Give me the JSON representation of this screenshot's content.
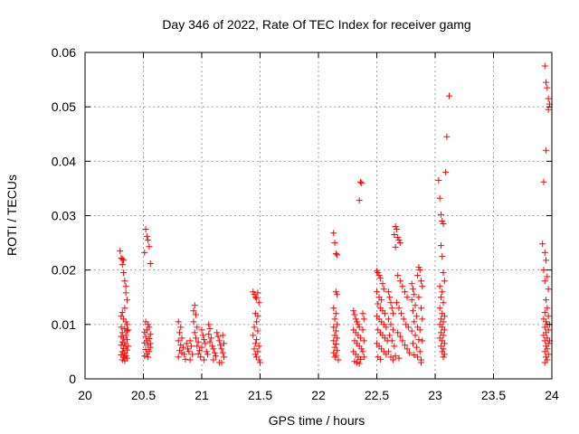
{
  "chart_data": {
    "type": "scatter",
    "title": "Day 346 of 2022, Rate Of TEC Index for receiver gamg",
    "xlabel": "GPS time / hours",
    "ylabel": "ROTI / TECUs",
    "xlim": [
      20,
      24
    ],
    "ylim": [
      0,
      0.06
    ],
    "grid": true,
    "marker": "+",
    "series_color": "#ff0000",
    "x_ticks": [
      20,
      20.5,
      21,
      21.5,
      22,
      22.5,
      23,
      23.5,
      24
    ],
    "y_ticks": [
      0,
      0.01,
      0.02,
      0.03,
      0.04,
      0.05,
      0.06
    ],
    "x_tick_labels": [
      "20",
      "20.5",
      "21",
      "21.5",
      "22",
      "22.5",
      "23",
      "23.5",
      "24"
    ],
    "y_tick_labels": [
      "0",
      "0.01",
      "0.02",
      "0.03",
      "0.04",
      "0.05",
      "0.06"
    ],
    "points": [
      [
        20.3,
        0.0235
      ],
      [
        20.31,
        0.0222
      ],
      [
        20.32,
        0.022
      ],
      [
        20.33,
        0.0218
      ],
      [
        20.32,
        0.021
      ],
      [
        20.33,
        0.0195
      ],
      [
        20.34,
        0.018
      ],
      [
        20.35,
        0.017
      ],
      [
        20.35,
        0.0158
      ],
      [
        20.36,
        0.0145
      ],
      [
        20.34,
        0.013
      ],
      [
        20.32,
        0.0122
      ],
      [
        20.31,
        0.0115
      ],
      [
        20.33,
        0.011
      ],
      [
        20.35,
        0.0105
      ],
      [
        20.36,
        0.01
      ],
      [
        20.31,
        0.0095
      ],
      [
        20.34,
        0.0092
      ],
      [
        20.36,
        0.0088
      ],
      [
        20.32,
        0.0085
      ],
      [
        20.35,
        0.008
      ],
      [
        20.31,
        0.0078
      ],
      [
        20.33,
        0.0075
      ],
      [
        20.36,
        0.0072
      ],
      [
        20.32,
        0.0068
      ],
      [
        20.34,
        0.0065
      ],
      [
        20.31,
        0.0062
      ],
      [
        20.35,
        0.006
      ],
      [
        20.33,
        0.0056
      ],
      [
        20.36,
        0.0053
      ],
      [
        20.32,
        0.005
      ],
      [
        20.34,
        0.0047
      ],
      [
        20.31,
        0.0044
      ],
      [
        20.35,
        0.0042
      ],
      [
        20.33,
        0.004
      ],
      [
        20.36,
        0.0038
      ],
      [
        20.32,
        0.0035
      ],
      [
        20.34,
        0.0033
      ],
      [
        20.37,
        0.009
      ],
      [
        20.37,
        0.006
      ],
      [
        20.52,
        0.0275
      ],
      [
        20.53,
        0.0262
      ],
      [
        20.54,
        0.0255
      ],
      [
        20.55,
        0.0243
      ],
      [
        20.51,
        0.0232
      ],
      [
        20.56,
        0.0212
      ],
      [
        20.52,
        0.0105
      ],
      [
        20.54,
        0.01
      ],
      [
        20.55,
        0.0095
      ],
      [
        20.53,
        0.009
      ],
      [
        20.51,
        0.0086
      ],
      [
        20.56,
        0.0082
      ],
      [
        20.52,
        0.0078
      ],
      [
        20.55,
        0.0074
      ],
      [
        20.53,
        0.007
      ],
      [
        20.51,
        0.0066
      ],
      [
        20.54,
        0.0062
      ],
      [
        20.56,
        0.0058
      ],
      [
        20.52,
        0.0054
      ],
      [
        20.55,
        0.005
      ],
      [
        20.53,
        0.0046
      ],
      [
        20.51,
        0.0042
      ],
      [
        20.54,
        0.004
      ],
      [
        20.56,
        0.0065
      ],
      [
        20.8,
        0.0105
      ],
      [
        20.82,
        0.0095
      ],
      [
        20.81,
        0.0085
      ],
      [
        20.83,
        0.0075
      ],
      [
        20.8,
        0.007
      ],
      [
        20.82,
        0.0062
      ],
      [
        20.84,
        0.0058
      ],
      [
        20.81,
        0.0052
      ],
      [
        20.83,
        0.0048
      ],
      [
        20.85,
        0.0045
      ],
      [
        20.8,
        0.004
      ],
      [
        20.86,
        0.0036
      ],
      [
        20.87,
        0.0065
      ],
      [
        20.88,
        0.0055
      ],
      [
        20.89,
        0.005
      ],
      [
        20.9,
        0.007
      ],
      [
        20.91,
        0.006
      ],
      [
        20.92,
        0.0045
      ],
      [
        20.93,
        0.0125
      ],
      [
        20.94,
        0.0135
      ],
      [
        20.95,
        0.0118
      ],
      [
        20.93,
        0.0105
      ],
      [
        20.96,
        0.0095
      ],
      [
        20.94,
        0.0085
      ],
      [
        20.95,
        0.0075
      ],
      [
        20.97,
        0.0068
      ],
      [
        20.96,
        0.006
      ],
      [
        20.98,
        0.0052
      ],
      [
        20.97,
        0.0046
      ],
      [
        20.99,
        0.004
      ],
      [
        21.0,
        0.009
      ],
      [
        21.01,
        0.008
      ],
      [
        21.02,
        0.0072
      ],
      [
        21.03,
        0.0065
      ],
      [
        21.0,
        0.0058
      ],
      [
        21.04,
        0.005
      ],
      [
        21.05,
        0.0045
      ],
      [
        21.06,
        0.01
      ],
      [
        21.07,
        0.0092
      ],
      [
        21.06,
        0.0082
      ],
      [
        21.08,
        0.0075
      ],
      [
        21.07,
        0.0068
      ],
      [
        21.09,
        0.006
      ],
      [
        21.1,
        0.0055
      ],
      [
        21.11,
        0.0048
      ],
      [
        21.12,
        0.0042
      ],
      [
        21.13,
        0.0085
      ],
      [
        21.14,
        0.0078
      ],
      [
        21.15,
        0.007
      ],
      [
        21.16,
        0.0062
      ],
      [
        21.17,
        0.0055
      ],
      [
        21.18,
        0.0048
      ],
      [
        21.19,
        0.004
      ],
      [
        21.17,
        0.003
      ],
      [
        21.18,
        0.008
      ],
      [
        21.19,
        0.0065
      ],
      [
        21.02,
        0.0035
      ],
      [
        20.9,
        0.0035
      ],
      [
        21.1,
        0.0035
      ],
      [
        21.15,
        0.003
      ],
      [
        21.44,
        0.016
      ],
      [
        21.45,
        0.0155
      ],
      [
        21.46,
        0.015
      ],
      [
        21.47,
        0.0148
      ],
      [
        21.48,
        0.0158
      ],
      [
        21.49,
        0.014
      ],
      [
        21.46,
        0.012
      ],
      [
        21.47,
        0.0105
      ],
      [
        21.45,
        0.0095
      ],
      [
        21.48,
        0.0088
      ],
      [
        21.44,
        0.008
      ],
      [
        21.47,
        0.0072
      ],
      [
        21.46,
        0.0065
      ],
      [
        21.49,
        0.006
      ],
      [
        21.45,
        0.0055
      ],
      [
        21.48,
        0.005
      ],
      [
        21.46,
        0.0045
      ],
      [
        21.47,
        0.004
      ],
      [
        21.49,
        0.0035
      ],
      [
        21.5,
        0.003
      ],
      [
        21.48,
        0.0115
      ],
      [
        22.13,
        0.0268
      ],
      [
        22.14,
        0.025
      ],
      [
        22.15,
        0.023
      ],
      [
        22.16,
        0.0228
      ],
      [
        22.15,
        0.016
      ],
      [
        22.16,
        0.0155
      ],
      [
        22.13,
        0.013
      ],
      [
        22.15,
        0.012
      ],
      [
        22.14,
        0.011
      ],
      [
        22.16,
        0.01
      ],
      [
        22.13,
        0.0095
      ],
      [
        22.15,
        0.0088
      ],
      [
        22.14,
        0.008
      ],
      [
        22.16,
        0.0075
      ],
      [
        22.13,
        0.007
      ],
      [
        22.15,
        0.0064
      ],
      [
        22.14,
        0.0058
      ],
      [
        22.16,
        0.0052
      ],
      [
        22.13,
        0.0048
      ],
      [
        22.15,
        0.0043
      ],
      [
        22.14,
        0.004
      ],
      [
        22.17,
        0.0035
      ],
      [
        22.3,
        0.0125
      ],
      [
        22.31,
        0.0118
      ],
      [
        22.32,
        0.011
      ],
      [
        22.33,
        0.0105
      ],
      [
        22.34,
        0.01
      ],
      [
        22.35,
        0.0095
      ],
      [
        22.3,
        0.009
      ],
      [
        22.32,
        0.0085
      ],
      [
        22.34,
        0.008
      ],
      [
        22.36,
        0.0075
      ],
      [
        22.31,
        0.007
      ],
      [
        22.33,
        0.0065
      ],
      [
        22.35,
        0.006
      ],
      [
        22.37,
        0.0055
      ],
      [
        22.3,
        0.005
      ],
      [
        22.32,
        0.0045
      ],
      [
        22.34,
        0.004
      ],
      [
        22.36,
        0.0036
      ],
      [
        22.31,
        0.0032
      ],
      [
        22.33,
        0.003
      ],
      [
        22.35,
        0.0028
      ],
      [
        22.36,
        0.0362
      ],
      [
        22.37,
        0.036
      ],
      [
        22.35,
        0.0328
      ],
      [
        22.38,
        0.012
      ],
      [
        22.39,
        0.011
      ],
      [
        22.38,
        0.009
      ],
      [
        22.39,
        0.007
      ],
      [
        22.38,
        0.005
      ],
      [
        22.39,
        0.004
      ],
      [
        22.5,
        0.0198
      ],
      [
        22.51,
        0.0195
      ],
      [
        22.52,
        0.019
      ],
      [
        22.53,
        0.0185
      ],
      [
        22.55,
        0.0175
      ],
      [
        22.56,
        0.0165
      ],
      [
        22.5,
        0.016
      ],
      [
        22.52,
        0.015
      ],
      [
        22.54,
        0.0145
      ],
      [
        22.51,
        0.0138
      ],
      [
        22.53,
        0.013
      ],
      [
        22.55,
        0.0125
      ],
      [
        22.57,
        0.012
      ],
      [
        22.5,
        0.0115
      ],
      [
        22.52,
        0.011
      ],
      [
        22.54,
        0.0105
      ],
      [
        22.56,
        0.01
      ],
      [
        22.58,
        0.0095
      ],
      [
        22.51,
        0.009
      ],
      [
        22.53,
        0.0085
      ],
      [
        22.55,
        0.008
      ],
      [
        22.57,
        0.0075
      ],
      [
        22.59,
        0.007
      ],
      [
        22.5,
        0.0065
      ],
      [
        22.52,
        0.006
      ],
      [
        22.54,
        0.0055
      ],
      [
        22.56,
        0.005
      ],
      [
        22.58,
        0.0045
      ],
      [
        22.51,
        0.004
      ],
      [
        22.53,
        0.0036
      ],
      [
        22.6,
        0.016
      ],
      [
        22.61,
        0.015
      ],
      [
        22.62,
        0.014
      ],
      [
        22.63,
        0.013
      ],
      [
        22.64,
        0.012
      ],
      [
        22.6,
        0.011
      ],
      [
        22.62,
        0.01
      ],
      [
        22.64,
        0.009
      ],
      [
        22.61,
        0.008
      ],
      [
        22.63,
        0.007
      ],
      [
        22.65,
        0.006
      ],
      [
        22.6,
        0.005
      ],
      [
        22.62,
        0.004
      ],
      [
        22.64,
        0.0035
      ],
      [
        22.66,
        0.028
      ],
      [
        22.67,
        0.0275
      ],
      [
        22.65,
        0.0265
      ],
      [
        22.68,
        0.026
      ],
      [
        22.69,
        0.0255
      ],
      [
        22.7,
        0.025
      ],
      [
        22.66,
        0.0242
      ],
      [
        22.68,
        0.019
      ],
      [
        22.7,
        0.018
      ],
      [
        22.72,
        0.017
      ],
      [
        22.74,
        0.016
      ],
      [
        22.76,
        0.015
      ],
      [
        22.67,
        0.014
      ],
      [
        22.69,
        0.013
      ],
      [
        22.71,
        0.012
      ],
      [
        22.73,
        0.011
      ],
      [
        22.75,
        0.01
      ],
      [
        22.77,
        0.0095
      ],
      [
        22.68,
        0.0085
      ],
      [
        22.7,
        0.0078
      ],
      [
        22.72,
        0.007
      ],
      [
        22.74,
        0.0062
      ],
      [
        22.76,
        0.0055
      ],
      [
        22.78,
        0.0048
      ],
      [
        22.66,
        0.0042
      ],
      [
        22.69,
        0.0038
      ],
      [
        22.8,
        0.0175
      ],
      [
        22.81,
        0.0165
      ],
      [
        22.82,
        0.0155
      ],
      [
        22.8,
        0.0145
      ],
      [
        22.83,
        0.0135
      ],
      [
        22.81,
        0.0125
      ],
      [
        22.84,
        0.0115
      ],
      [
        22.82,
        0.0105
      ],
      [
        22.85,
        0.0095
      ],
      [
        22.8,
        0.0088
      ],
      [
        22.83,
        0.008
      ],
      [
        22.86,
        0.0072
      ],
      [
        22.81,
        0.0065
      ],
      [
        22.84,
        0.0058
      ],
      [
        22.87,
        0.005
      ],
      [
        22.82,
        0.0044
      ],
      [
        22.85,
        0.004
      ],
      [
        22.88,
        0.0035
      ],
      [
        22.86,
        0.0205
      ],
      [
        22.87,
        0.02
      ],
      [
        22.85,
        0.019
      ],
      [
        22.88,
        0.018
      ],
      [
        22.89,
        0.017
      ],
      [
        22.86,
        0.015
      ],
      [
        22.88,
        0.013
      ],
      [
        22.89,
        0.011
      ],
      [
        22.87,
        0.009
      ],
      [
        22.89,
        0.007
      ],
      [
        22.88,
        0.003
      ],
      [
        23.03,
        0.0365
      ],
      [
        23.04,
        0.0332
      ],
      [
        23.05,
        0.0302
      ],
      [
        23.06,
        0.029
      ],
      [
        23.07,
        0.0285
      ],
      [
        23.05,
        0.0245
      ],
      [
        23.06,
        0.0225
      ],
      [
        23.07,
        0.0195
      ],
      [
        23.08,
        0.018
      ],
      [
        23.04,
        0.017
      ],
      [
        23.06,
        0.016
      ],
      [
        23.05,
        0.015
      ],
      [
        23.07,
        0.014
      ],
      [
        23.04,
        0.013
      ],
      [
        23.06,
        0.012
      ],
      [
        23.08,
        0.0115
      ],
      [
        23.05,
        0.011
      ],
      [
        23.07,
        0.0105
      ],
      [
        23.04,
        0.01
      ],
      [
        23.06,
        0.0095
      ],
      [
        23.08,
        0.009
      ],
      [
        23.05,
        0.0085
      ],
      [
        23.07,
        0.008
      ],
      [
        23.04,
        0.0075
      ],
      [
        23.06,
        0.007
      ],
      [
        23.08,
        0.0065
      ],
      [
        23.05,
        0.006
      ],
      [
        23.07,
        0.0055
      ],
      [
        23.06,
        0.005
      ],
      [
        23.08,
        0.0045
      ],
      [
        23.07,
        0.004
      ],
      [
        23.09,
        0.038
      ],
      [
        23.1,
        0.0445
      ],
      [
        23.12,
        0.052
      ],
      [
        23.94,
        0.0575
      ],
      [
        23.95,
        0.0545
      ],
      [
        23.96,
        0.0535
      ],
      [
        23.97,
        0.0515
      ],
      [
        23.98,
        0.0505
      ],
      [
        23.97,
        0.0495
      ],
      [
        23.95,
        0.042
      ],
      [
        23.93,
        0.0362
      ],
      [
        23.92,
        0.0248
      ],
      [
        23.94,
        0.0232
      ],
      [
        23.95,
        0.0218
      ],
      [
        23.93,
        0.02
      ],
      [
        23.96,
        0.0188
      ],
      [
        23.94,
        0.018
      ],
      [
        23.97,
        0.0165
      ],
      [
        23.95,
        0.0145
      ],
      [
        23.96,
        0.013
      ],
      [
        23.94,
        0.0122
      ],
      [
        23.97,
        0.0115
      ],
      [
        23.93,
        0.011
      ],
      [
        23.95,
        0.0105
      ],
      [
        23.96,
        0.01
      ],
      [
        23.94,
        0.0095
      ],
      [
        23.97,
        0.009
      ],
      [
        23.95,
        0.0085
      ],
      [
        23.93,
        0.008
      ],
      [
        23.96,
        0.0075
      ],
      [
        23.94,
        0.007
      ],
      [
        23.97,
        0.0065
      ],
      [
        23.95,
        0.006
      ],
      [
        23.96,
        0.0055
      ],
      [
        23.94,
        0.005
      ],
      [
        23.97,
        0.0045
      ],
      [
        23.95,
        0.004
      ],
      [
        23.96,
        0.0035
      ],
      [
        23.94,
        0.003
      ],
      [
        23.98,
        0.01
      ],
      [
        23.98,
        0.007
      ]
    ]
  }
}
